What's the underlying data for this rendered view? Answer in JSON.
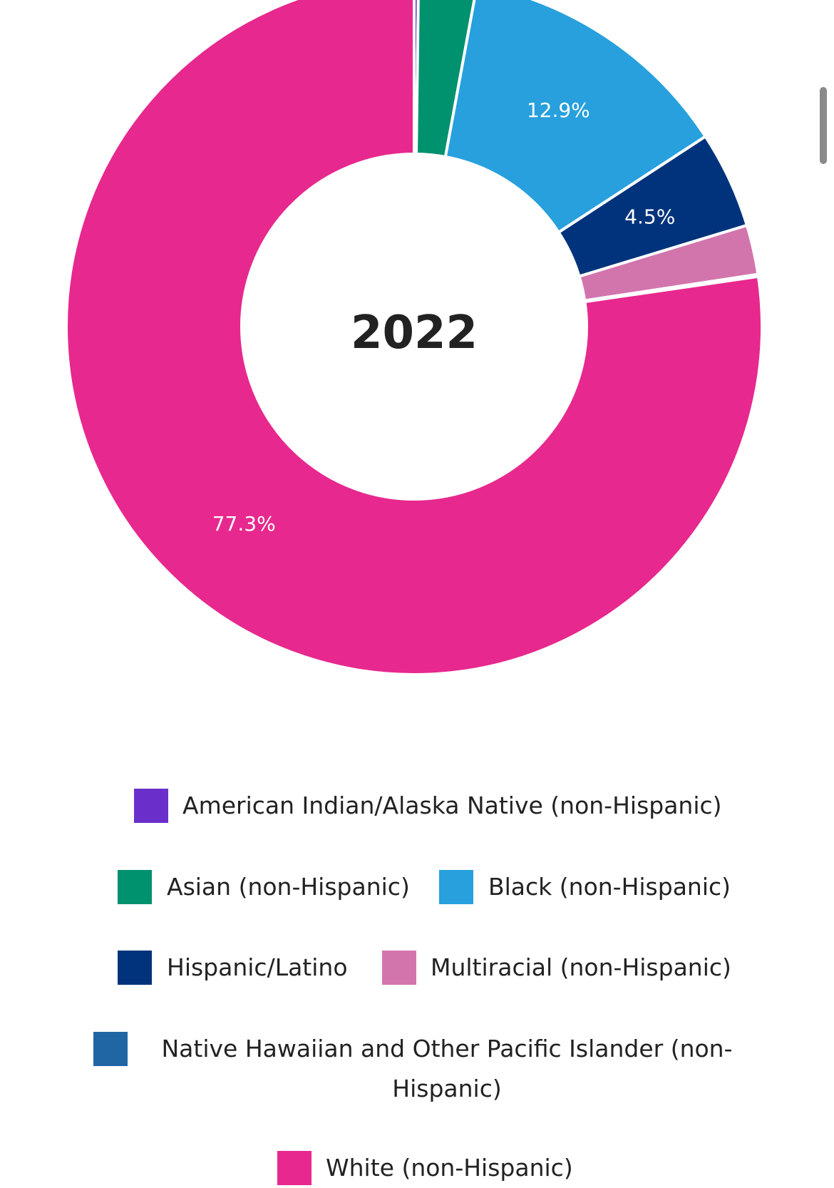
{
  "chart_data": {
    "type": "pie",
    "variant": "donut",
    "title": "2022",
    "categories": [
      "American Indian/Alaska Native (non-Hispanic)",
      "Asian (non-Hispanic)",
      "Black (non-Hispanic)",
      "Hispanic/Latino",
      "Multiracial (non-Hispanic)",
      "Native Hawaiian and Other Pacific Islander (non-Hispanic)",
      "White (non-Hispanic)"
    ],
    "values": [
      0.2,
      2.7,
      12.9,
      4.5,
      2.3,
      0.1,
      77.3
    ],
    "data_labels": [
      "",
      "",
      "12.9%",
      "4.5%",
      "",
      "",
      "77.3%"
    ],
    "colors": [
      "#6a2fcb",
      "#00916e",
      "#27a0dd",
      "#00337b",
      "#d375ad",
      "#2066a4",
      "#e7288e"
    ],
    "legend_position": "bottom"
  }
}
